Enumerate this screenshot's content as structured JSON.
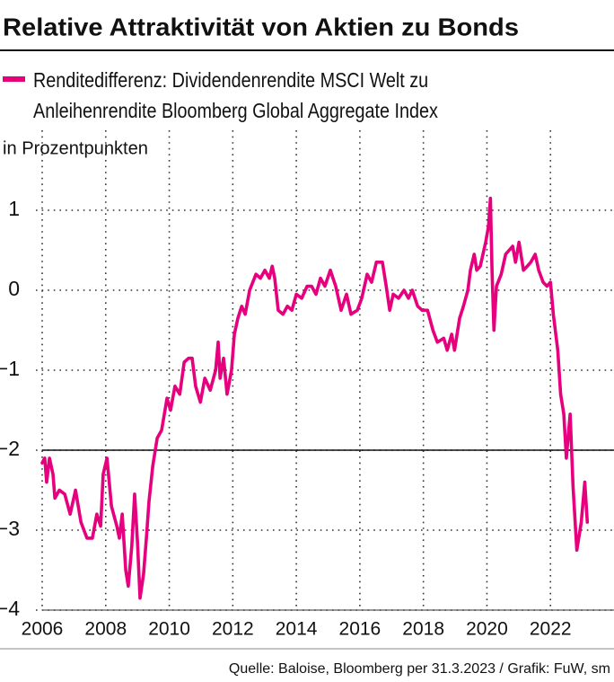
{
  "chart_data": {
    "type": "line",
    "title": "Relative Attraktivität von Aktien zu Bonds",
    "y_label": "in Prozentpunkten",
    "source": "Quelle: Baloise, Bloomberg per 31.3.2023 / Grafik: FuW, sm",
    "x": [
      2006.0,
      2006.08,
      2006.14,
      2006.23,
      2006.34,
      2006.4,
      2006.54,
      2006.71,
      2006.88,
      2007.05,
      2007.22,
      2007.41,
      2007.58,
      2007.72,
      2007.84,
      2007.92,
      2008.04,
      2008.18,
      2008.35,
      2008.43,
      2008.52,
      2008.63,
      2008.71,
      2008.82,
      2008.91,
      2009.0,
      2009.08,
      2009.19,
      2009.28,
      2009.36,
      2009.48,
      2009.62,
      2009.76,
      2009.93,
      2010.04,
      2010.18,
      2010.33,
      2010.47,
      2010.61,
      2010.72,
      2010.83,
      2010.98,
      2011.12,
      2011.29,
      2011.46,
      2011.54,
      2011.6,
      2011.71,
      2011.82,
      2011.96,
      2012.05,
      2012.16,
      2012.28,
      2012.39,
      2012.53,
      2012.73,
      2012.87,
      2013.01,
      2013.15,
      2013.24,
      2013.32,
      2013.43,
      2013.58,
      2013.72,
      2013.86,
      2014.0,
      2014.17,
      2014.34,
      2014.48,
      2014.62,
      2014.76,
      2014.9,
      2015.07,
      2015.24,
      2015.41,
      2015.58,
      2015.72,
      2015.92,
      2016.06,
      2016.23,
      2016.37,
      2016.52,
      2016.71,
      2016.83,
      2016.94,
      2017.05,
      2017.22,
      2017.39,
      2017.53,
      2017.65,
      2017.82,
      2017.96,
      2018.13,
      2018.3,
      2018.44,
      2018.64,
      2018.75,
      2018.89,
      2018.98,
      2019.14,
      2019.26,
      2019.4,
      2019.48,
      2019.6,
      2019.68,
      2019.79,
      2019.96,
      2020.05,
      2020.11,
      2020.16,
      2020.22,
      2020.3,
      2020.45,
      2020.59,
      2020.7,
      2020.81,
      2020.9,
      2021.01,
      2021.15,
      2021.27,
      2021.38,
      2021.52,
      2021.63,
      2021.77,
      2021.89,
      2022.0,
      2022.09,
      2022.23,
      2022.32,
      2022.42,
      2022.5,
      2022.62,
      2022.71,
      2022.83,
      2022.97,
      2023.08,
      2023.16
    ],
    "series": [
      {
        "name": "Renditedifferenz: Dividendenrendite MSCI Welt zu Anleihenrendite Bloomberg Global Aggregate Index",
        "color": "#e6007e",
        "values": [
          -2.16,
          -2.1,
          -2.4,
          -2.1,
          -2.3,
          -2.6,
          -2.5,
          -2.55,
          -2.8,
          -2.5,
          -2.9,
          -3.1,
          -3.1,
          -2.8,
          -2.95,
          -2.3,
          -2.1,
          -2.7,
          -2.95,
          -3.1,
          -2.8,
          -3.5,
          -3.7,
          -3.2,
          -2.55,
          -3.15,
          -3.85,
          -3.55,
          -3.1,
          -2.65,
          -2.2,
          -1.85,
          -1.75,
          -1.35,
          -1.5,
          -1.2,
          -1.3,
          -0.9,
          -0.85,
          -0.85,
          -1.2,
          -1.4,
          -1.1,
          -1.25,
          -1.0,
          -0.65,
          -1.1,
          -0.85,
          -1.3,
          -1.0,
          -0.55,
          -0.35,
          -0.2,
          -0.3,
          0.0,
          0.2,
          0.15,
          0.25,
          0.15,
          0.3,
          0.15,
          -0.25,
          -0.3,
          -0.2,
          -0.25,
          -0.05,
          -0.1,
          0.05,
          0.05,
          -0.05,
          0.15,
          0.05,
          0.25,
          0.05,
          -0.25,
          -0.05,
          -0.3,
          -0.25,
          -0.1,
          0.2,
          0.1,
          0.35,
          0.35,
          0.05,
          -0.25,
          -0.05,
          -0.1,
          0.0,
          -0.1,
          0.0,
          -0.2,
          -0.25,
          -0.25,
          -0.5,
          -0.65,
          -0.6,
          -0.75,
          -0.55,
          -0.75,
          -0.35,
          -0.2,
          0.0,
          0.25,
          0.45,
          0.25,
          0.3,
          0.6,
          0.8,
          1.15,
          0.25,
          -0.5,
          0.05,
          0.2,
          0.45,
          0.5,
          0.55,
          0.35,
          0.6,
          0.25,
          0.3,
          0.35,
          0.45,
          0.25,
          0.1,
          0.05,
          0.1,
          -0.3,
          -0.75,
          -1.3,
          -1.55,
          -2.1,
          -1.55,
          -2.45,
          -3.25,
          -2.9,
          -2.4,
          -2.9
        ]
      }
    ],
    "xlim": [
      2006,
      2024
    ],
    "xticks": [
      2006,
      2008,
      2010,
      2012,
      2014,
      2016,
      2018,
      2020,
      2022
    ],
    "ylim": [
      -4,
      2
    ],
    "yticks": [
      {
        "value": -4,
        "label": "−4"
      },
      {
        "value": -3,
        "label": "−3"
      },
      {
        "value": -2,
        "label": "−2"
      },
      {
        "value": -1,
        "label": "−1"
      },
      0,
      1
    ],
    "reference_line": -2,
    "grid": true
  }
}
